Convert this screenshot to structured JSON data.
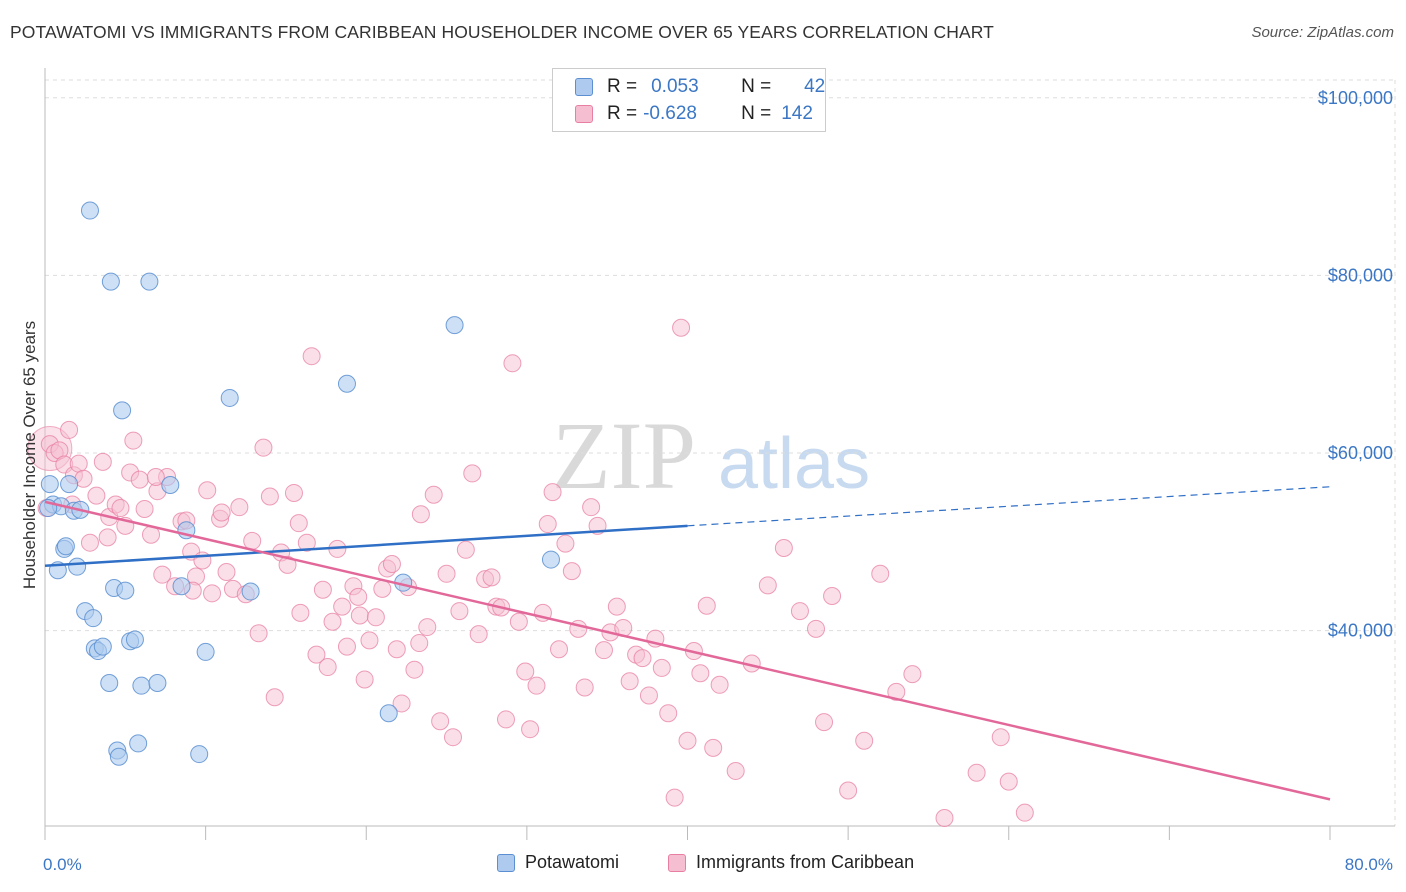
{
  "title": "POTAWATOMI VS IMMIGRANTS FROM CARIBBEAN HOUSEHOLDER INCOME OVER 65 YEARS CORRELATION CHART",
  "source": "Source: ZipAtlas.com",
  "watermark": {
    "zip": "ZIP",
    "atlas": "atlas"
  },
  "colors": {
    "blue_fill": "#aecbef",
    "blue_stroke": "#5b8fd1",
    "blue_line": "#2f6fc6",
    "pink_fill": "#f6bfd1",
    "pink_stroke": "#e87fa3",
    "pink_line": "#e3689a",
    "tick_text": "#3b77c4",
    "grid": "#dddddd"
  },
  "legend": {
    "rows": [
      {
        "r_label": "R =",
        "r_value": "0.053",
        "n_label": "N =",
        "n_value": "42"
      },
      {
        "r_label": "R =",
        "r_value": "-0.628",
        "n_label": "N =",
        "n_value": "142"
      }
    ]
  },
  "bottom_legend": [
    "Potawatomi",
    "Immigrants from Caribbean"
  ],
  "chart_data": {
    "type": "scatter",
    "title": "POTAWATOMI VS IMMIGRANTS FROM CARIBBEAN HOUSEHOLDER INCOME OVER 65 YEARS CORRELATION CHART",
    "xlabel": "",
    "ylabel": "Householder Income Over 65 years",
    "xlim": [
      0,
      80
    ],
    "ylim": [
      18000,
      102000
    ],
    "x_tick_labels": [
      {
        "value": 0,
        "label": "0.0%"
      },
      {
        "value": 80,
        "label": "80.0%"
      }
    ],
    "y_ticks": [
      {
        "value": 40000,
        "label": "$40,000"
      },
      {
        "value": 60000,
        "label": "$60,000"
      },
      {
        "value": 80000,
        "label": "$80,000"
      },
      {
        "value": 100000,
        "label": "$100,000"
      }
    ],
    "series": [
      {
        "name": "Potawatomi",
        "r": 0.053,
        "n": 42,
        "trend": {
          "x0": 0,
          "y0": 47300,
          "x1": 40,
          "y1": 51800,
          "dash_to_x": 80,
          "dash_to_y": 56200
        },
        "points": [
          [
            0.3,
            56500
          ],
          [
            0.5,
            54200
          ],
          [
            0.8,
            46800
          ],
          [
            1.0,
            54000
          ],
          [
            1.2,
            49200
          ],
          [
            1.3,
            49500
          ],
          [
            1.5,
            56500
          ],
          [
            1.8,
            53500
          ],
          [
            2.0,
            47200
          ],
          [
            2.2,
            53600
          ],
          [
            2.5,
            42200
          ],
          [
            2.8,
            87300
          ],
          [
            3.0,
            41400
          ],
          [
            3.1,
            38000
          ],
          [
            3.3,
            37700
          ],
          [
            3.6,
            38200
          ],
          [
            4.0,
            34100
          ],
          [
            4.1,
            79300
          ],
          [
            4.3,
            44800
          ],
          [
            4.5,
            26500
          ],
          [
            4.6,
            25800
          ],
          [
            4.8,
            64800
          ],
          [
            5.0,
            44500
          ],
          [
            5.3,
            38800
          ],
          [
            5.6,
            39000
          ],
          [
            5.8,
            27300
          ],
          [
            6.0,
            33800
          ],
          [
            6.5,
            79300
          ],
          [
            7.0,
            34100
          ],
          [
            7.8,
            56400
          ],
          [
            8.5,
            45000
          ],
          [
            8.8,
            51300
          ],
          [
            9.6,
            26100
          ],
          [
            10.0,
            37600
          ],
          [
            11.5,
            66200
          ],
          [
            12.8,
            44400
          ],
          [
            18.8,
            67800
          ],
          [
            21.4,
            30700
          ],
          [
            22.3,
            45400
          ],
          [
            25.5,
            74400
          ],
          [
            31.5,
            48000
          ],
          [
            0.2,
            53800
          ]
        ]
      },
      {
        "name": "Immigrants from Caribbean",
        "r": -0.628,
        "n": 142,
        "trend": {
          "x0": 0,
          "y0": 54500,
          "x1": 80,
          "y1": 21000
        },
        "points": [
          [
            0.3,
            61000
          ],
          [
            0.6,
            60000
          ],
          [
            0.9,
            60300
          ],
          [
            1.2,
            58700
          ],
          [
            1.5,
            62600
          ],
          [
            1.8,
            57500
          ],
          [
            2.1,
            58800
          ],
          [
            2.4,
            57100
          ],
          [
            2.8,
            49900
          ],
          [
            3.2,
            55200
          ],
          [
            3.6,
            59000
          ],
          [
            4.0,
            52800
          ],
          [
            4.4,
            54200
          ],
          [
            4.7,
            53800
          ],
          [
            5.0,
            51800
          ],
          [
            5.3,
            57800
          ],
          [
            5.5,
            61400
          ],
          [
            5.9,
            57000
          ],
          [
            6.2,
            53700
          ],
          [
            6.6,
            50800
          ],
          [
            7.0,
            55700
          ],
          [
            7.3,
            46300
          ],
          [
            7.6,
            57300
          ],
          [
            8.1,
            45000
          ],
          [
            8.5,
            52300
          ],
          [
            8.8,
            52400
          ],
          [
            9.1,
            48900
          ],
          [
            9.4,
            46100
          ],
          [
            9.8,
            47900
          ],
          [
            10.1,
            55800
          ],
          [
            10.4,
            44200
          ],
          [
            10.9,
            52600
          ],
          [
            11.3,
            46600
          ],
          [
            11.7,
            44700
          ],
          [
            12.1,
            53900
          ],
          [
            12.5,
            44100
          ],
          [
            12.9,
            50100
          ],
          [
            13.3,
            39700
          ],
          [
            13.6,
            60600
          ],
          [
            14.0,
            55100
          ],
          [
            14.3,
            32500
          ],
          [
            14.7,
            48800
          ],
          [
            15.1,
            47400
          ],
          [
            15.5,
            55500
          ],
          [
            15.9,
            42000
          ],
          [
            16.3,
            49900
          ],
          [
            16.6,
            70900
          ],
          [
            16.9,
            37300
          ],
          [
            17.3,
            44600
          ],
          [
            17.6,
            35900
          ],
          [
            17.9,
            41000
          ],
          [
            18.2,
            49200
          ],
          [
            18.5,
            42700
          ],
          [
            18.8,
            38200
          ],
          [
            19.2,
            45000
          ],
          [
            19.6,
            41700
          ],
          [
            19.9,
            34500
          ],
          [
            20.2,
            38900
          ],
          [
            20.6,
            41500
          ],
          [
            21.0,
            44700
          ],
          [
            21.3,
            47000
          ],
          [
            21.6,
            47500
          ],
          [
            21.9,
            37900
          ],
          [
            22.2,
            31800
          ],
          [
            22.6,
            44900
          ],
          [
            23.0,
            35600
          ],
          [
            23.4,
            53100
          ],
          [
            23.8,
            40400
          ],
          [
            24.2,
            55300
          ],
          [
            24.6,
            29800
          ],
          [
            25.0,
            46400
          ],
          [
            25.4,
            28000
          ],
          [
            25.8,
            42200
          ],
          [
            26.2,
            49100
          ],
          [
            26.6,
            57700
          ],
          [
            27.0,
            39600
          ],
          [
            27.4,
            45800
          ],
          [
            27.8,
            46000
          ],
          [
            28.1,
            42700
          ],
          [
            28.4,
            42600
          ],
          [
            28.7,
            30000
          ],
          [
            29.1,
            70100
          ],
          [
            29.5,
            41000
          ],
          [
            29.9,
            35400
          ],
          [
            30.2,
            28900
          ],
          [
            30.6,
            33800
          ],
          [
            31.0,
            42000
          ],
          [
            31.3,
            52000
          ],
          [
            31.6,
            55600
          ],
          [
            32.0,
            37900
          ],
          [
            32.4,
            49800
          ],
          [
            32.8,
            46700
          ],
          [
            33.2,
            40200
          ],
          [
            33.6,
            33600
          ],
          [
            34.0,
            53900
          ],
          [
            34.4,
            51800
          ],
          [
            34.8,
            37800
          ],
          [
            35.2,
            39800
          ],
          [
            35.6,
            42700
          ],
          [
            36.0,
            40300
          ],
          [
            36.4,
            34300
          ],
          [
            36.8,
            37300
          ],
          [
            37.2,
            36900
          ],
          [
            37.6,
            32700
          ],
          [
            38.0,
            39100
          ],
          [
            38.4,
            35800
          ],
          [
            38.8,
            30700
          ],
          [
            39.2,
            21200
          ],
          [
            39.6,
            74100
          ],
          [
            40.0,
            27600
          ],
          [
            40.4,
            37700
          ],
          [
            40.8,
            35200
          ],
          [
            41.2,
            42800
          ],
          [
            41.6,
            26800
          ],
          [
            42.0,
            33900
          ],
          [
            43.0,
            24200
          ],
          [
            44.0,
            36300
          ],
          [
            45.0,
            45100
          ],
          [
            46.0,
            49300
          ],
          [
            47.0,
            42200
          ],
          [
            48.0,
            40200
          ],
          [
            48.5,
            29700
          ],
          [
            49.0,
            43900
          ],
          [
            50.0,
            22000
          ],
          [
            51.0,
            27600
          ],
          [
            52.0,
            46400
          ],
          [
            53.0,
            33100
          ],
          [
            54.0,
            35100
          ],
          [
            56.0,
            18900
          ],
          [
            58.0,
            24000
          ],
          [
            59.5,
            28000
          ],
          [
            60.0,
            23000
          ],
          [
            61.0,
            19500
          ],
          [
            0.1,
            53800
          ],
          [
            1.7,
            54200
          ],
          [
            3.9,
            50500
          ],
          [
            6.9,
            57300
          ],
          [
            9.2,
            44500
          ],
          [
            11.0,
            53300
          ],
          [
            15.8,
            52100
          ],
          [
            19.5,
            43800
          ],
          [
            23.3,
            38600
          ]
        ]
      }
    ]
  }
}
